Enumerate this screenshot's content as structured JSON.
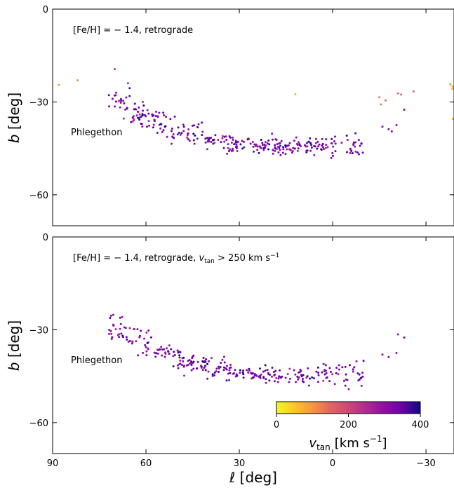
{
  "chart_data": [
    {
      "type": "scatter",
      "annotation": "[Fe/H] = − 1.4, retrograde",
      "stream_label": "Phlegethon",
      "ylabel": "b [deg]",
      "xlabel": "",
      "xlim": [
        90,
        -39
      ],
      "ylim": [
        -70,
        0
      ],
      "xticks": [
        90,
        60,
        30,
        0,
        -30
      ],
      "yticks": [
        0,
        -30,
        -60
      ],
      "ytick_labels": [
        "0",
        "−30",
        "−60"
      ],
      "outliers": [
        {
          "l": 88,
          "b": -24.5,
          "vtan": 100
        },
        {
          "l": 82,
          "b": -23,
          "vtan": 110
        },
        {
          "l": 12,
          "b": -27.5,
          "vtan": 70
        },
        {
          "l": -15,
          "b": -28.5,
          "vtan": 140
        },
        {
          "l": -17,
          "b": -29.5,
          "vtan": 150
        },
        {
          "l": -15.5,
          "b": -30.8,
          "vtan": 130
        },
        {
          "l": -21,
          "b": -27.2,
          "vtan": 150
        },
        {
          "l": -22,
          "b": -27.6,
          "vtan": 140
        },
        {
          "l": -26,
          "b": -26.6,
          "vtan": 160
        },
        {
          "l": -38.5,
          "b": -25,
          "vtan": 90
        },
        {
          "l": -38.5,
          "b": -25.8,
          "vtan": 70
        },
        {
          "l": -37.8,
          "b": -24.3,
          "vtan": 100
        },
        {
          "l": -38.6,
          "b": -35.5,
          "vtan": 60
        }
      ],
      "outer_points": [
        {
          "l": -23,
          "b": -32.5,
          "vtan": 340
        },
        {
          "l": -16,
          "b": -38,
          "vtan": 330
        },
        {
          "l": -18,
          "b": -38.8,
          "vtan": 320
        },
        {
          "l": -19,
          "b": -39.5,
          "vtan": 320
        },
        {
          "l": -20.5,
          "b": -37.5,
          "vtan": 300
        }
      ],
      "track": {
        "l_min": -10,
        "l_max": 72,
        "n_points": 330,
        "seed": 7
      }
    },
    {
      "type": "scatter",
      "annotation": "[Fe/H] = − 1.4, retrograde, ",
      "annotation_vsym": "v",
      "annotation_vsub": "tan",
      "annotation_tail": " > 250 km s",
      "annotation_sup": "−1",
      "stream_label": "Phlegethon",
      "ylabel": "b [deg]",
      "xlabel": "ℓ [deg]",
      "xlim": [
        90,
        -39
      ],
      "ylim": [
        -70,
        0
      ],
      "xticks": [
        90,
        60,
        30,
        0,
        -30
      ],
      "xtick_labels": [
        "90",
        "60",
        "30",
        "0",
        "−30"
      ],
      "yticks": [
        0,
        -30,
        -60
      ],
      "ytick_labels": [
        "0",
        "−30",
        "−60"
      ],
      "outer_points": [
        {
          "l": -23,
          "b": -32.5,
          "vtan": 340
        },
        {
          "l": -16,
          "b": -38,
          "vtan": 330
        },
        {
          "l": -18,
          "b": -38.8,
          "vtan": 320
        },
        {
          "l": -21,
          "b": -31.5,
          "vtan": 300
        },
        {
          "l": -20.5,
          "b": -37.5,
          "vtan": 300
        }
      ],
      "track": {
        "l_min": -10,
        "l_max": 72,
        "n_points": 300,
        "seed": 11
      }
    }
  ],
  "colorbar": {
    "colormap": "plasma_r",
    "range": [
      0,
      400
    ],
    "ticks": [
      0,
      200,
      400
    ],
    "label_sym": "v",
    "label_sub": "tan",
    "label_unit": "[km s",
    "label_sup": "−1",
    "label_close": "]"
  }
}
